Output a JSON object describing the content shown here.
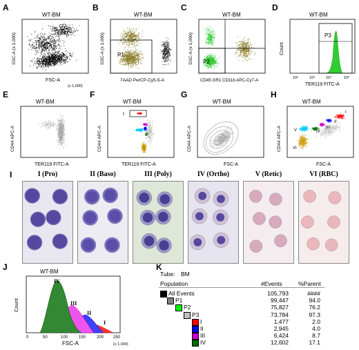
{
  "panels": {
    "A": {
      "letter": "A",
      "title": "WT-BM",
      "ylabel": "SSC-A (x 1,000)",
      "xlabel": "FSC-A",
      "xunit": "(x 1,000)"
    },
    "B": {
      "letter": "B",
      "title": "WT-BM",
      "ylabel": "SSC-A (x 1,000)",
      "xlabel": "7AAD PerCP-Cy5-5-A",
      "gate": "P1"
    },
    "C": {
      "letter": "C",
      "title": "WT-BM",
      "ylabel": "SSC-A (x 1,000)",
      "xlabel": "CD45 GR1 CD11b APC-Cy7-A",
      "gate": "P2"
    },
    "D": {
      "letter": "D",
      "title": "WT-BM",
      "ylabel": "Count",
      "xlabel": "TER119 FITC-A",
      "gate": "P3",
      "xticks": [
        "10²",
        "10³",
        "10⁴",
        "10⁵"
      ]
    },
    "E": {
      "letter": "E",
      "title": "WT-BM",
      "ylabel": "CD44 APC-A",
      "xlabel": "TER119 FITC-A"
    },
    "F": {
      "letter": "F",
      "title": "WT-BM",
      "ylabel": "CD44 APC-A",
      "xlabel": "TER119 FITC-A",
      "gate": "I"
    },
    "G": {
      "letter": "G",
      "title": "WT-BM",
      "ylabel": "CD44 APC-A",
      "xlabel": "FSC-A"
    },
    "H": {
      "letter": "H",
      "title": "WT-BM",
      "ylabel": "CD44 APC-A",
      "xlabel": "FSC-A",
      "gates": [
        "I",
        "II",
        "III",
        "IV",
        "V",
        "VI"
      ]
    },
    "I": {
      "letter": "I",
      "stages": [
        "I (Pro)",
        "II (Baso)",
        "III (Poly)",
        "IV (Ortho)",
        "V (Retic)",
        "VI (RBC)"
      ]
    },
    "J": {
      "letter": "J",
      "title": "WT-BM",
      "ylabel": "Count",
      "xlabel": "FSC-A",
      "peaks": [
        "IV",
        "III",
        "II",
        "I"
      ],
      "xticks": [
        "0",
        "50",
        "100",
        "150",
        "200",
        "250"
      ],
      "xunit": "(x 1,000)"
    },
    "K": {
      "letter": "K"
    }
  },
  "gate_colors": {
    "I": "#ff0000",
    "II": "#0000ff",
    "III": "#cc00cc",
    "IV": "#006600",
    "V": "#00c8ff",
    "VI": "#cc9900"
  },
  "table": {
    "tube_label": "Tube:",
    "tube_value": "BM",
    "headers": [
      "Population",
      "#Events",
      "%Parent"
    ],
    "rows": [
      {
        "name": "All Events",
        "events": "105,793",
        "parent": "####",
        "color": "#000000"
      },
      {
        "name": "P1",
        "events": "99,447",
        "parent": "94.0",
        "color": "#808080"
      },
      {
        "name": "P2",
        "events": "75,827",
        "parent": "76.2",
        "color": "#00ff00"
      },
      {
        "name": "P3",
        "events": "73,784",
        "parent": "97.3",
        "color": "#c0c0c0"
      },
      {
        "name": "I",
        "events": "1,477",
        "parent": "2.0",
        "color": "#ff0000"
      },
      {
        "name": "II",
        "events": "2,945",
        "parent": "4.0",
        "color": "#0000ff"
      },
      {
        "name": "III",
        "events": "6,424",
        "parent": "8.7",
        "color": "#cc00cc"
      },
      {
        "name": "IV",
        "events": "12,602",
        "parent": "17.1",
        "color": "#006600"
      }
    ]
  }
}
